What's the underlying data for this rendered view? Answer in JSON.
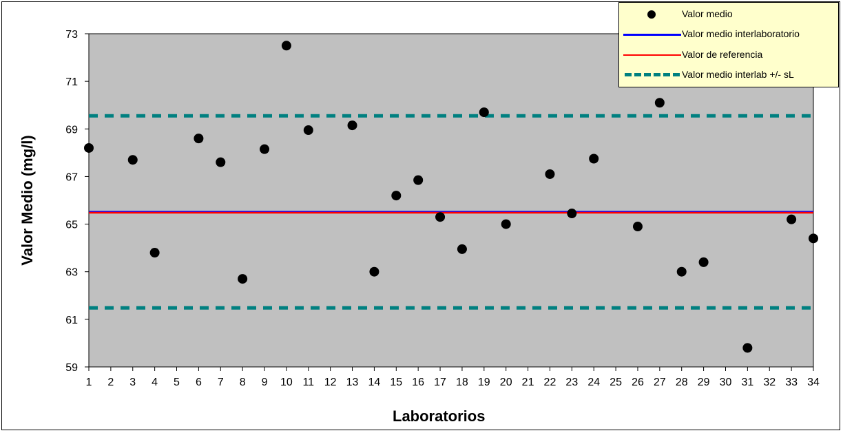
{
  "chart_data": {
    "type": "scatter",
    "xlabel": "Laboratorios",
    "ylabel": "Valor Medio (mg/l)",
    "ylim": [
      59,
      73
    ],
    "y_ticks": [
      "59",
      "61",
      "63",
      "65",
      "67",
      "69",
      "71",
      "73"
    ],
    "x_ticks": [
      "1",
      "2",
      "3",
      "4",
      "5",
      "6",
      "7",
      "8",
      "9",
      "10",
      "11",
      "12",
      "13",
      "14",
      "15",
      "16",
      "17",
      "18",
      "19",
      "20",
      "21",
      "22",
      "23",
      "24",
      "25",
      "26",
      "27",
      "28",
      "29",
      "30",
      "31",
      "32",
      "33",
      "34"
    ],
    "grid": false,
    "legend_position": "top-right",
    "series": [
      {
        "name": "Valor medio",
        "points": [
          {
            "x": 1,
            "y": 68.2
          },
          {
            "x": 3,
            "y": 67.7
          },
          {
            "x": 4,
            "y": 63.8
          },
          {
            "x": 6,
            "y": 68.6
          },
          {
            "x": 7,
            "y": 67.6
          },
          {
            "x": 8,
            "y": 62.7
          },
          {
            "x": 9,
            "y": 68.15
          },
          {
            "x": 10,
            "y": 72.5
          },
          {
            "x": 11,
            "y": 68.95
          },
          {
            "x": 13,
            "y": 69.15
          },
          {
            "x": 14,
            "y": 63.0
          },
          {
            "x": 15,
            "y": 66.2
          },
          {
            "x": 16,
            "y": 66.85
          },
          {
            "x": 17,
            "y": 65.3
          },
          {
            "x": 18,
            "y": 63.95
          },
          {
            "x": 19,
            "y": 69.7
          },
          {
            "x": 20,
            "y": 65.0
          },
          {
            "x": 22,
            "y": 67.1
          },
          {
            "x": 23,
            "y": 65.45
          },
          {
            "x": 24,
            "y": 67.75
          },
          {
            "x": 26,
            "y": 64.9
          },
          {
            "x": 27,
            "y": 70.1
          },
          {
            "x": 28,
            "y": 63.0
          },
          {
            "x": 29,
            "y": 63.4
          },
          {
            "x": 31,
            "y": 59.8
          },
          {
            "x": 33,
            "y": 65.2
          },
          {
            "x": 34,
            "y": 64.4
          }
        ]
      },
      {
        "name": "Valor medio interlaboratorio",
        "y": 65.52,
        "color": "#0000ff"
      },
      {
        "name": "Valor de referencia",
        "y": 65.48,
        "color": "#ff0000"
      },
      {
        "name": "Valor medio interlab  +/- sL",
        "y_values": [
          69.55,
          61.48
        ],
        "color": "#008080"
      }
    ],
    "plot_background": "#c0c0c0",
    "legend_background": "#ffffcc"
  }
}
